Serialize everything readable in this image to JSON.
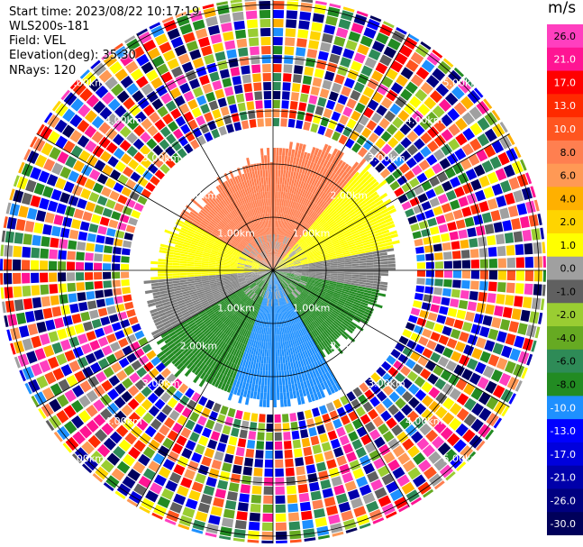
{
  "header": {
    "start_time": "Start time: 2023/08/22 10:17:19",
    "instrument": "WLS200s-181",
    "field": "Field: VEL",
    "elevation": "Elevation(deg): 35.30",
    "nrays": "NRays: 120"
  },
  "colorbar": {
    "unit": "m/s",
    "ticks": [
      "26.0",
      "21.0",
      "17.0",
      "13.0",
      "10.0",
      "8.0",
      "6.0",
      "4.0",
      "2.0",
      "1.0",
      "0.0",
      "-1.0",
      "-2.0",
      "-4.0",
      "-6.0",
      "-8.0",
      "-10.0",
      "-13.0",
      "-17.0",
      "-21.0",
      "-26.0",
      "-30.0"
    ],
    "colors": [
      "#ff3fbf",
      "#ff1493",
      "#ff0000",
      "#ff2a00",
      "#ff5520",
      "#ff7f50",
      "#ff9955",
      "#ffb000",
      "#ffd400",
      "#ffff00",
      "#a0a0a0",
      "#606060",
      "#9acd32",
      "#66aa22",
      "#2e8b57",
      "#228b22",
      "#1e90ff",
      "#0000ff",
      "#0000dd",
      "#0000aa",
      "#000080",
      "#00005a"
    ]
  },
  "chart_data": {
    "type": "heatmap",
    "subtype": "lidar-ppi",
    "field": "VEL",
    "units": "m/s",
    "n_rays": 120,
    "range_rings_km": [
      "1.00km",
      "2.00km",
      "3.00km",
      "4.00km",
      "5.00km"
    ],
    "ring_label_directions": [
      "NE",
      "NW",
      "SE",
      "SW"
    ],
    "pattern": [
      {
        "sector": "N (approx -60 to 60 deg)",
        "range_km": "0-2.2",
        "velocity_ms": "6 to 10",
        "color": "#ff7f50"
      },
      {
        "sector": "NE (approx 40 to 80 deg)",
        "range_km": "0-2.6",
        "velocity_ms": "2 to 4",
        "color": "#ffff00"
      },
      {
        "sector": "E-W band (approx 80 to 100 deg)",
        "range_km": "0-1.5",
        "velocity_ms": "-1 to 1",
        "color": "#808080"
      },
      {
        "sector": "S (approx 120 to 240 deg)",
        "range_km": "0-2.2",
        "velocity_ms": "-4 to -8",
        "color": "#228b22"
      },
      {
        "sector": "SSE (approx 150 to 200 deg)",
        "range_km": "0.6-2.4",
        "velocity_ms": "-8 to -10",
        "color": "#1e90ff"
      },
      {
        "sector": "all",
        "range_km": "beyond ~2.5",
        "velocity_ms": "noise, all values",
        "color": "mixed"
      }
    ]
  }
}
